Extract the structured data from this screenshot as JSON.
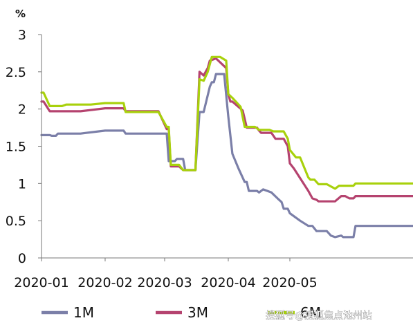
{
  "chart_data": {
    "type": "line",
    "title": "",
    "xlabel": "",
    "ylabel": "%",
    "ylim": [
      0,
      3
    ],
    "yticks": [
      "0",
      "0.5",
      "1",
      "1.5",
      "2",
      "2.5",
      "3"
    ],
    "xlim": [
      "2020-01-01",
      "2020-06-30"
    ],
    "xticks": [
      {
        "date": "2020-01-01",
        "label": "2020-01"
      },
      {
        "date": "2020-02-01",
        "label": "2020-02"
      },
      {
        "date": "2020-03-01",
        "label": "2020-03"
      },
      {
        "date": "2020-04-01",
        "label": "2020-04"
      },
      {
        "date": "2020-05-01",
        "label": "2020-05"
      }
    ],
    "grid": false,
    "legend_position": "bottom",
    "series": [
      {
        "name": "1M",
        "color": "#7b7fa8",
        "points": [
          [
            "2020-01-01",
            1.65
          ],
          [
            "2020-01-05",
            1.65
          ],
          [
            "2020-01-06",
            1.64
          ],
          [
            "2020-01-08",
            1.64
          ],
          [
            "2020-01-09",
            1.67
          ],
          [
            "2020-01-20",
            1.67
          ],
          [
            "2020-02-01",
            1.71
          ],
          [
            "2020-02-10",
            1.71
          ],
          [
            "2020-02-11",
            1.67
          ],
          [
            "2020-02-28",
            1.67
          ],
          [
            "2020-03-02",
            1.67
          ],
          [
            "2020-03-03",
            1.3
          ],
          [
            "2020-03-06",
            1.3
          ],
          [
            "2020-03-07",
            1.33
          ],
          [
            "2020-03-10",
            1.33
          ],
          [
            "2020-03-11",
            1.18
          ],
          [
            "2020-03-16",
            1.18
          ],
          [
            "2020-03-18",
            1.96
          ],
          [
            "2020-03-20",
            1.96
          ],
          [
            "2020-03-23",
            2.3
          ],
          [
            "2020-03-24",
            2.36
          ],
          [
            "2020-03-25",
            2.36
          ],
          [
            "2020-03-26",
            2.47
          ],
          [
            "2020-03-30",
            2.47
          ],
          [
            "2020-04-01",
            1.9
          ],
          [
            "2020-04-03",
            1.4
          ],
          [
            "2020-04-06",
            1.2
          ],
          [
            "2020-04-09",
            1.02
          ],
          [
            "2020-04-10",
            1.02
          ],
          [
            "2020-04-11",
            0.9
          ],
          [
            "2020-04-15",
            0.9
          ],
          [
            "2020-04-16",
            0.88
          ],
          [
            "2020-04-18",
            0.92
          ],
          [
            "2020-04-22",
            0.88
          ],
          [
            "2020-04-25",
            0.8
          ],
          [
            "2020-04-27",
            0.75
          ],
          [
            "2020-04-28",
            0.66
          ],
          [
            "2020-04-30",
            0.66
          ],
          [
            "2020-05-01",
            0.6
          ],
          [
            "2020-05-06",
            0.5
          ],
          [
            "2020-05-10",
            0.43
          ],
          [
            "2020-05-12",
            0.43
          ],
          [
            "2020-05-14",
            0.36
          ],
          [
            "2020-05-19",
            0.36
          ],
          [
            "2020-05-21",
            0.3
          ],
          [
            "2020-05-23",
            0.28
          ],
          [
            "2020-05-26",
            0.3
          ],
          [
            "2020-05-27",
            0.28
          ],
          [
            "2020-06-01",
            0.28
          ],
          [
            "2020-06-02",
            0.43
          ],
          [
            "2020-06-30",
            0.43
          ]
        ]
      },
      {
        "name": "3M",
        "color": "#b5436f",
        "points": [
          [
            "2020-01-01",
            2.1
          ],
          [
            "2020-01-02",
            2.1
          ],
          [
            "2020-01-05",
            1.97
          ],
          [
            "2020-01-20",
            1.97
          ],
          [
            "2020-02-01",
            2.01
          ],
          [
            "2020-02-10",
            2.01
          ],
          [
            "2020-02-11",
            1.97
          ],
          [
            "2020-02-27",
            1.97
          ],
          [
            "2020-03-02",
            1.73
          ],
          [
            "2020-03-03",
            1.73
          ],
          [
            "2020-03-04",
            1.23
          ],
          [
            "2020-03-08",
            1.23
          ],
          [
            "2020-03-10",
            1.18
          ],
          [
            "2020-03-16",
            1.18
          ],
          [
            "2020-03-18",
            2.5
          ],
          [
            "2020-03-20",
            2.45
          ],
          [
            "2020-03-22",
            2.55
          ],
          [
            "2020-03-23",
            2.65
          ],
          [
            "2020-03-26",
            2.68
          ],
          [
            "2020-03-31",
            2.55
          ],
          [
            "2020-04-01",
            2.2
          ],
          [
            "2020-04-02",
            2.1
          ],
          [
            "2020-04-03",
            2.1
          ],
          [
            "2020-04-08",
            1.98
          ],
          [
            "2020-04-10",
            1.75
          ],
          [
            "2020-04-15",
            1.75
          ],
          [
            "2020-04-16",
            1.71
          ],
          [
            "2020-04-17",
            1.68
          ],
          [
            "2020-04-22",
            1.68
          ],
          [
            "2020-04-24",
            1.6
          ],
          [
            "2020-04-28",
            1.6
          ],
          [
            "2020-04-30",
            1.5
          ],
          [
            "2020-05-01",
            1.27
          ],
          [
            "2020-05-03",
            1.2
          ],
          [
            "2020-05-10",
            0.9
          ],
          [
            "2020-05-12",
            0.8
          ],
          [
            "2020-05-14",
            0.78
          ],
          [
            "2020-05-15",
            0.76
          ],
          [
            "2020-05-23",
            0.76
          ],
          [
            "2020-05-26",
            0.83
          ],
          [
            "2020-05-28",
            0.83
          ],
          [
            "2020-05-30",
            0.8
          ],
          [
            "2020-06-01",
            0.8
          ],
          [
            "2020-06-02",
            0.83
          ],
          [
            "2020-06-30",
            0.83
          ]
        ]
      },
      {
        "name": "6M",
        "color": "#a8d10c",
        "points": [
          [
            "2020-01-01",
            2.22
          ],
          [
            "2020-01-02",
            2.22
          ],
          [
            "2020-01-05",
            2.04
          ],
          [
            "2020-01-11",
            2.04
          ],
          [
            "2020-01-13",
            2.06
          ],
          [
            "2020-01-25",
            2.06
          ],
          [
            "2020-02-01",
            2.08
          ],
          [
            "2020-02-10",
            2.08
          ],
          [
            "2020-02-11",
            1.96
          ],
          [
            "2020-02-27",
            1.96
          ],
          [
            "2020-03-02",
            1.76
          ],
          [
            "2020-03-03",
            1.76
          ],
          [
            "2020-03-04",
            1.25
          ],
          [
            "2020-03-08",
            1.25
          ],
          [
            "2020-03-10",
            1.18
          ],
          [
            "2020-03-16",
            1.18
          ],
          [
            "2020-03-18",
            2.4
          ],
          [
            "2020-03-20",
            2.38
          ],
          [
            "2020-03-22",
            2.5
          ],
          [
            "2020-03-24",
            2.7
          ],
          [
            "2020-03-28",
            2.7
          ],
          [
            "2020-03-31",
            2.65
          ],
          [
            "2020-04-01",
            2.2
          ],
          [
            "2020-04-03",
            2.15
          ],
          [
            "2020-04-07",
            2.03
          ],
          [
            "2020-04-09",
            1.76
          ],
          [
            "2020-04-14",
            1.76
          ],
          [
            "2020-04-16",
            1.72
          ],
          [
            "2020-04-21",
            1.72
          ],
          [
            "2020-04-23",
            1.7
          ],
          [
            "2020-04-28",
            1.7
          ],
          [
            "2020-04-30",
            1.6
          ],
          [
            "2020-05-01",
            1.45
          ],
          [
            "2020-05-04",
            1.35
          ],
          [
            "2020-05-06",
            1.35
          ],
          [
            "2020-05-10",
            1.08
          ],
          [
            "2020-05-11",
            1.05
          ],
          [
            "2020-05-13",
            1.05
          ],
          [
            "2020-05-15",
            0.99
          ],
          [
            "2020-05-19",
            0.99
          ],
          [
            "2020-05-23",
            0.93
          ],
          [
            "2020-05-25",
            0.97
          ],
          [
            "2020-05-27",
            0.97
          ],
          [
            "2020-06-01",
            0.97
          ],
          [
            "2020-06-02",
            1.0
          ],
          [
            "2020-06-30",
            1.0
          ]
        ]
      }
    ]
  },
  "watermark": "搜狐号@搜狐焦点池州站"
}
